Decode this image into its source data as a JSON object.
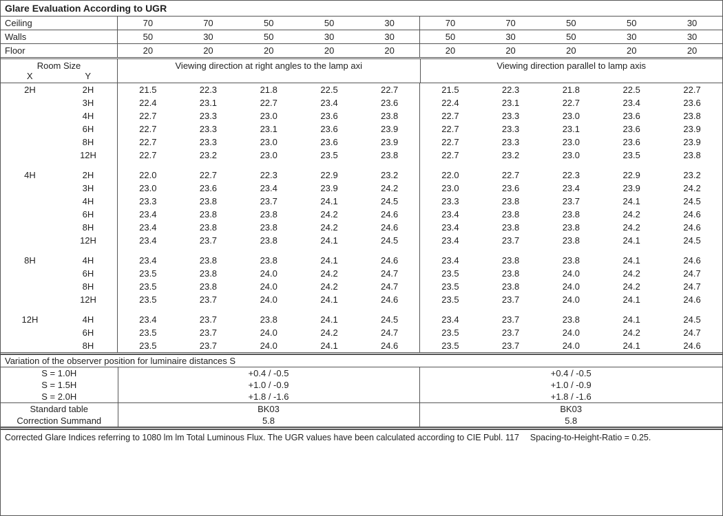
{
  "title": "Glare Evaluation According to UGR",
  "surfaces": {
    "labels": [
      "Ceiling",
      "Walls",
      "Floor"
    ],
    "ceiling": [
      "70",
      "70",
      "50",
      "50",
      "30",
      "70",
      "70",
      "50",
      "50",
      "30"
    ],
    "walls": [
      "50",
      "30",
      "50",
      "30",
      "30",
      "50",
      "30",
      "50",
      "30",
      "30"
    ],
    "floor": [
      "20",
      "20",
      "20",
      "20",
      "20",
      "20",
      "20",
      "20",
      "20",
      "20"
    ]
  },
  "roomHeader": {
    "room": "Room Size",
    "x": "X",
    "y": "Y",
    "view1": "Viewing direction at right angles to the lamp axi",
    "view2": "Viewing direction parallel to lamp axis"
  },
  "groups": [
    {
      "x": "2H",
      "rows": [
        {
          "y": "2H",
          "a": [
            "21.5",
            "22.3",
            "21.8",
            "22.5",
            "22.7"
          ],
          "b": [
            "21.5",
            "22.3",
            "21.8",
            "22.5",
            "22.7"
          ]
        },
        {
          "y": "3H",
          "a": [
            "22.4",
            "23.1",
            "22.7",
            "23.4",
            "23.6"
          ],
          "b": [
            "22.4",
            "23.1",
            "22.7",
            "23.4",
            "23.6"
          ]
        },
        {
          "y": "4H",
          "a": [
            "22.7",
            "23.3",
            "23.0",
            "23.6",
            "23.8"
          ],
          "b": [
            "22.7",
            "23.3",
            "23.0",
            "23.6",
            "23.8"
          ]
        },
        {
          "y": "6H",
          "a": [
            "22.7",
            "23.3",
            "23.1",
            "23.6",
            "23.9"
          ],
          "b": [
            "22.7",
            "23.3",
            "23.1",
            "23.6",
            "23.9"
          ]
        },
        {
          "y": "8H",
          "a": [
            "22.7",
            "23.3",
            "23.0",
            "23.6",
            "23.9"
          ],
          "b": [
            "22.7",
            "23.3",
            "23.0",
            "23.6",
            "23.9"
          ]
        },
        {
          "y": "12H",
          "a": [
            "22.7",
            "23.2",
            "23.0",
            "23.5",
            "23.8"
          ],
          "b": [
            "22.7",
            "23.2",
            "23.0",
            "23.5",
            "23.8"
          ]
        }
      ]
    },
    {
      "x": "4H",
      "rows": [
        {
          "y": "2H",
          "a": [
            "22.0",
            "22.7",
            "22.3",
            "22.9",
            "23.2"
          ],
          "b": [
            "22.0",
            "22.7",
            "22.3",
            "22.9",
            "23.2"
          ]
        },
        {
          "y": "3H",
          "a": [
            "23.0",
            "23.6",
            "23.4",
            "23.9",
            "24.2"
          ],
          "b": [
            "23.0",
            "23.6",
            "23.4",
            "23.9",
            "24.2"
          ]
        },
        {
          "y": "4H",
          "a": [
            "23.3",
            "23.8",
            "23.7",
            "24.1",
            "24.5"
          ],
          "b": [
            "23.3",
            "23.8",
            "23.7",
            "24.1",
            "24.5"
          ]
        },
        {
          "y": "6H",
          "a": [
            "23.4",
            "23.8",
            "23.8",
            "24.2",
            "24.6"
          ],
          "b": [
            "23.4",
            "23.8",
            "23.8",
            "24.2",
            "24.6"
          ]
        },
        {
          "y": "8H",
          "a": [
            "23.4",
            "23.8",
            "23.8",
            "24.2",
            "24.6"
          ],
          "b": [
            "23.4",
            "23.8",
            "23.8",
            "24.2",
            "24.6"
          ]
        },
        {
          "y": "12H",
          "a": [
            "23.4",
            "23.7",
            "23.8",
            "24.1",
            "24.5"
          ],
          "b": [
            "23.4",
            "23.7",
            "23.8",
            "24.1",
            "24.5"
          ]
        }
      ]
    },
    {
      "x": "8H",
      "rows": [
        {
          "y": "4H",
          "a": [
            "23.4",
            "23.8",
            "23.8",
            "24.1",
            "24.6"
          ],
          "b": [
            "23.4",
            "23.8",
            "23.8",
            "24.1",
            "24.6"
          ]
        },
        {
          "y": "6H",
          "a": [
            "23.5",
            "23.8",
            "24.0",
            "24.2",
            "24.7"
          ],
          "b": [
            "23.5",
            "23.8",
            "24.0",
            "24.2",
            "24.7"
          ]
        },
        {
          "y": "8H",
          "a": [
            "23.5",
            "23.8",
            "24.0",
            "24.2",
            "24.7"
          ],
          "b": [
            "23.5",
            "23.8",
            "24.0",
            "24.2",
            "24.7"
          ]
        },
        {
          "y": "12H",
          "a": [
            "23.5",
            "23.7",
            "24.0",
            "24.1",
            "24.6"
          ],
          "b": [
            "23.5",
            "23.7",
            "24.0",
            "24.1",
            "24.6"
          ]
        }
      ]
    },
    {
      "x": "12H",
      "rows": [
        {
          "y": "4H",
          "a": [
            "23.4",
            "23.7",
            "23.8",
            "24.1",
            "24.5"
          ],
          "b": [
            "23.4",
            "23.7",
            "23.8",
            "24.1",
            "24.5"
          ]
        },
        {
          "y": "6H",
          "a": [
            "23.5",
            "23.7",
            "24.0",
            "24.2",
            "24.7"
          ],
          "b": [
            "23.5",
            "23.7",
            "24.0",
            "24.2",
            "24.7"
          ]
        },
        {
          "y": "8H",
          "a": [
            "23.5",
            "23.7",
            "24.0",
            "24.1",
            "24.6"
          ],
          "b": [
            "23.5",
            "23.7",
            "24.0",
            "24.1",
            "24.6"
          ]
        }
      ]
    }
  ],
  "variation": {
    "title": "Variation of the observer position for luminaire distances S",
    "rows": [
      {
        "s": "S = 1.0H",
        "v": "+0.4 / -0.5"
      },
      {
        "s": "S = 1.5H",
        "v": "+1.0 / -0.9"
      },
      {
        "s": "S = 2.0H",
        "v": "+1.8 / -1.6"
      }
    ]
  },
  "standard": {
    "tableLabel": "Standard table",
    "tableVal": "BK03",
    "corrLabel": "Correction Summand",
    "corrVal": "5.8"
  },
  "footnote": "Corrected Glare Indices referring to 1080 lm lm Total Luminous Flux. The UGR values have been calculated according to CIE Publ. 117  Spacing-to-Height-Ratio = 0.25."
}
